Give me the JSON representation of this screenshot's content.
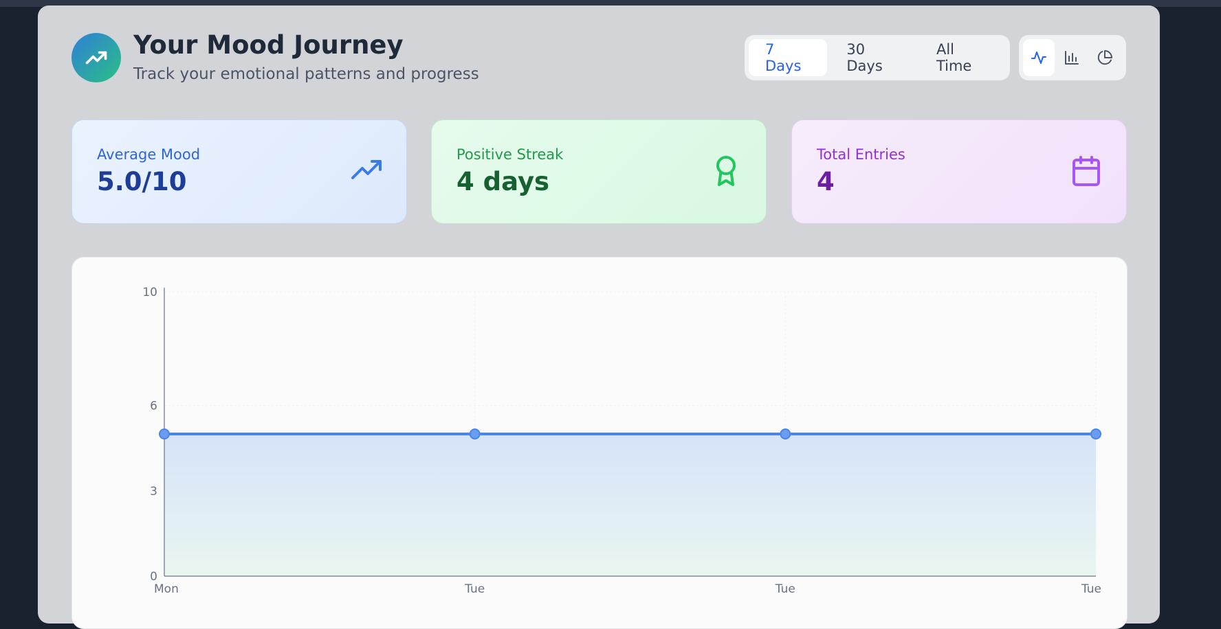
{
  "header": {
    "title": "Your Mood Journey",
    "subtitle": "Track your emotional patterns and progress"
  },
  "time_range": {
    "options": [
      "7 Days",
      "30 Days",
      "All Time"
    ],
    "selected": "7 Days"
  },
  "view_mode": {
    "options": [
      "line-chart-icon",
      "bar-chart-icon",
      "pie-chart-icon"
    ],
    "selected": "line-chart-icon"
  },
  "stats": {
    "average": {
      "label": "Average Mood",
      "value": "5.0/10",
      "icon": "trending-up-icon"
    },
    "streak": {
      "label": "Positive Streak",
      "value": "4 days",
      "icon": "award-icon"
    },
    "entries": {
      "label": "Total Entries",
      "value": "4",
      "icon": "calendar-icon"
    }
  },
  "colors": {
    "accent": "#2563eb",
    "line": "#4a86e8",
    "streak_green": "#22c55e",
    "entries_purple": "#a855f7"
  },
  "chart_data": {
    "type": "area",
    "x": [
      "Mon",
      "Tue",
      "Tue",
      "Tue"
    ],
    "values": [
      5,
      5,
      5,
      5
    ],
    "yticks": [
      0,
      3,
      6,
      10
    ],
    "ylim": [
      0,
      10
    ],
    "grid": true
  }
}
